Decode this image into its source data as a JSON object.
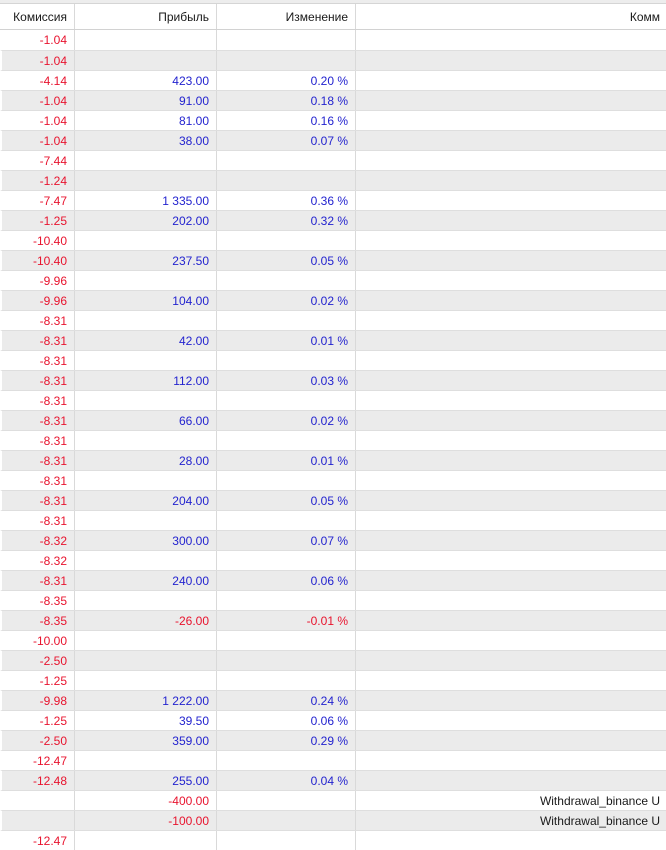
{
  "header": {
    "columns": [
      {
        "label": "Комиссия"
      },
      {
        "label": "Прибыль"
      },
      {
        "label": "Изменение"
      },
      {
        "label": "Комм"
      }
    ]
  },
  "table": {
    "rows": [
      {
        "commission": "-1.04",
        "profit": "",
        "change": "",
        "comment": ""
      },
      {
        "commission": "-1.04",
        "profit": "",
        "change": "",
        "comment": ""
      },
      {
        "commission": "-4.14",
        "profit": "423.00",
        "change": "0.20 %",
        "comment": ""
      },
      {
        "commission": "-1.04",
        "profit": "91.00",
        "change": "0.18 %",
        "comment": ""
      },
      {
        "commission": "-1.04",
        "profit": "81.00",
        "change": "0.16 %",
        "comment": ""
      },
      {
        "commission": "-1.04",
        "profit": "38.00",
        "change": "0.07 %",
        "comment": ""
      },
      {
        "commission": "-7.44",
        "profit": "",
        "change": "",
        "comment": ""
      },
      {
        "commission": "-1.24",
        "profit": "",
        "change": "",
        "comment": ""
      },
      {
        "commission": "-7.47",
        "profit": "1 335.00",
        "change": "0.36 %",
        "comment": ""
      },
      {
        "commission": "-1.25",
        "profit": "202.00",
        "change": "0.32 %",
        "comment": ""
      },
      {
        "commission": "-10.40",
        "profit": "",
        "change": "",
        "comment": ""
      },
      {
        "commission": "-10.40",
        "profit": "237.50",
        "change": "0.05 %",
        "comment": ""
      },
      {
        "commission": "-9.96",
        "profit": "",
        "change": "",
        "comment": ""
      },
      {
        "commission": "-9.96",
        "profit": "104.00",
        "change": "0.02 %",
        "comment": ""
      },
      {
        "commission": "-8.31",
        "profit": "",
        "change": "",
        "comment": ""
      },
      {
        "commission": "-8.31",
        "profit": "42.00",
        "change": "0.01 %",
        "comment": ""
      },
      {
        "commission": "-8.31",
        "profit": "",
        "change": "",
        "comment": ""
      },
      {
        "commission": "-8.31",
        "profit": "112.00",
        "change": "0.03 %",
        "comment": ""
      },
      {
        "commission": "-8.31",
        "profit": "",
        "change": "",
        "comment": ""
      },
      {
        "commission": "-8.31",
        "profit": "66.00",
        "change": "0.02 %",
        "comment": ""
      },
      {
        "commission": "-8.31",
        "profit": "",
        "change": "",
        "comment": ""
      },
      {
        "commission": "-8.31",
        "profit": "28.00",
        "change": "0.01 %",
        "comment": ""
      },
      {
        "commission": "-8.31",
        "profit": "",
        "change": "",
        "comment": ""
      },
      {
        "commission": "-8.31",
        "profit": "204.00",
        "change": "0.05 %",
        "comment": ""
      },
      {
        "commission": "-8.31",
        "profit": "",
        "change": "",
        "comment": ""
      },
      {
        "commission": "-8.32",
        "profit": "300.00",
        "change": "0.07 %",
        "comment": ""
      },
      {
        "commission": "-8.32",
        "profit": "",
        "change": "",
        "comment": ""
      },
      {
        "commission": "-8.31",
        "profit": "240.00",
        "change": "0.06 %",
        "comment": ""
      },
      {
        "commission": "-8.35",
        "profit": "",
        "change": "",
        "comment": ""
      },
      {
        "commission": "-8.35",
        "profit": "-26.00",
        "change": "-0.01 %",
        "comment": ""
      },
      {
        "commission": "-10.00",
        "profit": "",
        "change": "",
        "comment": ""
      },
      {
        "commission": "-2.50",
        "profit": "",
        "change": "",
        "comment": ""
      },
      {
        "commission": "-1.25",
        "profit": "",
        "change": "",
        "comment": ""
      },
      {
        "commission": "-9.98",
        "profit": "1 222.00",
        "change": "0.24 %",
        "comment": ""
      },
      {
        "commission": "-1.25",
        "profit": "39.50",
        "change": "0.06 %",
        "comment": ""
      },
      {
        "commission": "-2.50",
        "profit": "359.00",
        "change": "0.29 %",
        "comment": ""
      },
      {
        "commission": "-12.47",
        "profit": "",
        "change": "",
        "comment": ""
      },
      {
        "commission": "-12.48",
        "profit": "255.00",
        "change": "0.04 %",
        "comment": ""
      },
      {
        "commission": "",
        "profit": "-400.00",
        "change": "",
        "comment": "Withdrawal_binance U"
      },
      {
        "commission": "",
        "profit": "-100.00",
        "change": "",
        "comment": "Withdrawal_binance U"
      },
      {
        "commission": "-12.47",
        "profit": "",
        "change": "",
        "comment": ""
      }
    ]
  },
  "colors": {
    "negative": "#e8132e",
    "positive": "#2323cf",
    "header_text": "#1a1a1a",
    "comment_text": "#1a1a1a",
    "alt_row_bg": "#ebebeb",
    "grid_line": "#d9d9d9"
  }
}
